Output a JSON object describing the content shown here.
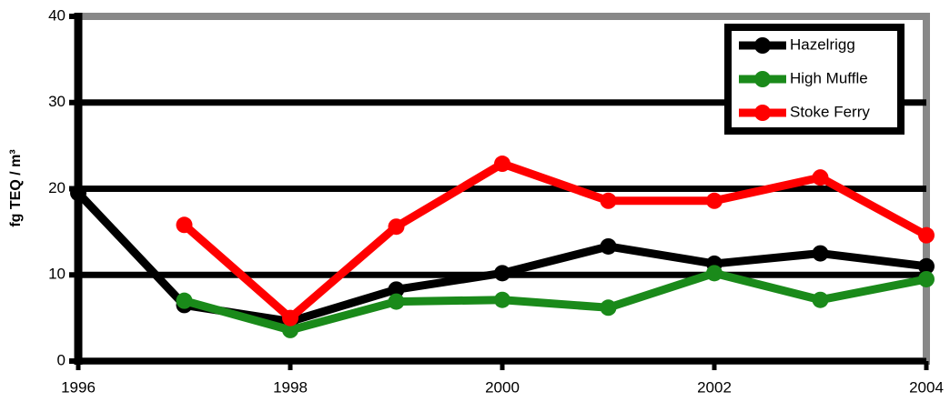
{
  "chart_data": {
    "type": "line",
    "y_label": "fg TEQ / m³",
    "x": [
      1996,
      1997,
      1998,
      1999,
      2000,
      2001,
      2002,
      2003,
      2004
    ],
    "xlim": [
      1996,
      2004
    ],
    "xticks": [
      1996,
      1998,
      2000,
      2002,
      2004
    ],
    "ylim": [
      0,
      40
    ],
    "yticks": [
      0,
      10,
      20,
      30,
      40
    ],
    "grid": true,
    "legend": "top-right",
    "series": [
      {
        "name": "Hazelrigg",
        "color": "#000000",
        "values": [
          19.5,
          6.5,
          4.6,
          8.3,
          10.2,
          13.3,
          11.3,
          12.5,
          11.0
        ]
      },
      {
        "name": "High Muffle",
        "color": "#1a8a1a",
        "values": [
          null,
          7.0,
          3.6,
          6.9,
          7.1,
          6.2,
          10.2,
          7.1,
          9.5
        ]
      },
      {
        "name": "Stoke Ferry",
        "color": "#ff0000",
        "values": [
          null,
          15.8,
          5.0,
          15.6,
          22.9,
          18.6,
          18.6,
          21.3,
          14.6
        ]
      }
    ]
  }
}
